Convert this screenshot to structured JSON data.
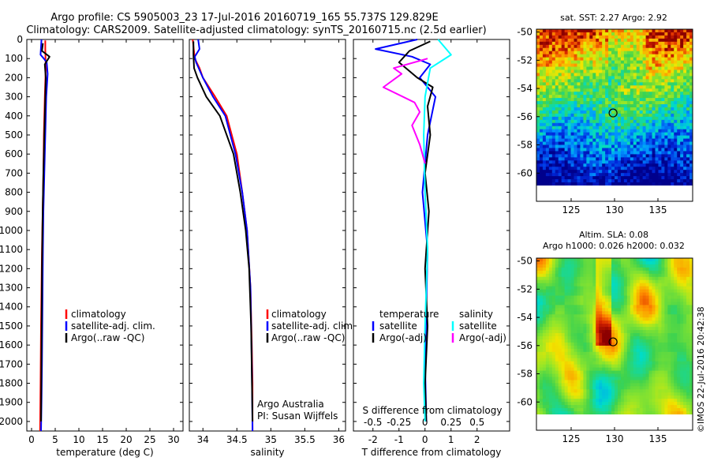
{
  "header": {
    "title_line1": "Argo profile: CS 5905003_23 17-Jul-2016 20160719_165 55.737S 129.829E",
    "title_line2": "Climatology: CARS2009. Satellite-adjusted climatology: synTS_20160715.nc (2.5d earlier)"
  },
  "colors": {
    "climatology": "#ff0000",
    "satellite": "#0000ff",
    "argo": "#000000",
    "satellite_salinity": "#00ffff",
    "argo_salinity": "#ff00ff"
  },
  "chart_data": [
    {
      "id": "temperature",
      "type": "line",
      "xlabel": "temperature (deg C)",
      "ylabel": "",
      "xlim": [
        -1,
        32
      ],
      "ylim": [
        2050,
        0
      ],
      "xticks": [
        0,
        5,
        10,
        15,
        20,
        25,
        30
      ],
      "yticks": [
        0,
        100,
        200,
        300,
        400,
        500,
        600,
        700,
        800,
        900,
        1000,
        1100,
        1200,
        1300,
        1400,
        1500,
        1600,
        1700,
        1800,
        1900,
        2000
      ],
      "legend": [
        "climatology",
        "satellite-adj. clim.",
        "Argo(..raw -QC)"
      ],
      "series": [
        {
          "name": "climatology",
          "color": "climatology",
          "x": [
            2.9,
            2.9,
            3.0,
            2.8,
            2.6,
            2.5,
            2.35,
            2.2,
            2.1,
            2.0,
            1.9,
            1.8
          ],
          "y": [
            5,
            50,
            150,
            300,
            500,
            700,
            900,
            1100,
            1300,
            1500,
            1800,
            2050
          ]
        },
        {
          "name": "satellite-adj. clim.",
          "color": "satellite",
          "x": [
            2.1,
            1.9,
            2.6,
            3.2,
            3.4,
            3.1,
            2.9,
            2.7,
            2.5,
            2.4,
            2.3,
            2.2,
            2.1,
            2.0
          ],
          "y": [
            0,
            80,
            100,
            120,
            180,
            300,
            500,
            700,
            900,
            1100,
            1400,
            1700,
            1900,
            2050
          ]
        },
        {
          "name": "Argo(..raw -QC)",
          "color": "argo",
          "x": [
            2.4,
            2.2,
            3.8,
            2.8,
            3.0,
            2.9,
            2.8,
            2.7,
            2.5,
            2.35,
            2.2,
            2.1,
            2.0
          ],
          "y": [
            20,
            60,
            90,
            130,
            200,
            300,
            400,
            500,
            700,
            900,
            1200,
            1600,
            2000
          ]
        }
      ]
    },
    {
      "id": "salinity",
      "type": "line",
      "xlabel": "salinity",
      "ylabel": "",
      "xlim": [
        33.8,
        36.1
      ],
      "ylim": [
        2050,
        0
      ],
      "xticks": [
        34,
        34.5,
        35,
        35.5,
        36
      ],
      "xtick_labels": [
        "34",
        "34.5",
        "35",
        "35.5",
        "36"
      ],
      "legend": [
        "climatology",
        "satellite-adj. clim.",
        "Argo(..raw -QC)"
      ],
      "annotation_lines": [
        "Argo Australia",
        "PI: Susan Wijffels"
      ],
      "series": [
        {
          "name": "climatology",
          "color": "climatology",
          "x": [
            33.85,
            33.88,
            33.95,
            34.0,
            34.18,
            34.35,
            34.5,
            34.58,
            34.65,
            34.7,
            34.72,
            34.73,
            34.73
          ],
          "y": [
            0,
            100,
            150,
            200,
            300,
            400,
            600,
            800,
            1000,
            1300,
            1600,
            1800,
            2050
          ]
        },
        {
          "name": "satellite-adj. clim.",
          "color": "satellite",
          "x": [
            33.93,
            33.95,
            33.88,
            33.9,
            34.0,
            34.15,
            34.33,
            34.48,
            34.58,
            34.65,
            34.7,
            34.72,
            34.73
          ],
          "y": [
            0,
            50,
            90,
            120,
            200,
            300,
            400,
            600,
            800,
            1000,
            1300,
            1700,
            2050
          ]
        },
        {
          "name": "Argo(..raw -QC)",
          "color": "argo",
          "x": [
            33.86,
            33.86,
            33.87,
            33.92,
            34.05,
            34.25,
            34.45,
            34.55,
            34.63,
            34.68,
            34.71,
            34.73
          ],
          "y": [
            10,
            80,
            150,
            200,
            300,
            400,
            600,
            800,
            1000,
            1200,
            1500,
            2000
          ]
        }
      ]
    },
    {
      "id": "difference",
      "type": "line",
      "xlabel": "T difference from climatology",
      "top_label": "S difference from climatology",
      "ylabel": "",
      "xlim": [
        -2.75,
        3.25
      ],
      "ylim": [
        2050,
        0
      ],
      "xticks": [
        -2,
        -1,
        0,
        1,
        2
      ],
      "top_ticks": [
        -0.5,
        -0.25,
        0,
        0.25,
        0.5
      ],
      "top_tick_labels": [
        "-0.5",
        "-0.25",
        "0",
        "0.25",
        "0.5"
      ],
      "legend_temperature": {
        "title": "temperature",
        "items": [
          "satellite",
          "Argo(-adj)"
        ]
      },
      "legend_salinity": {
        "title": "salinity",
        "items": [
          "satellite",
          "Argo(-adj)"
        ]
      },
      "series": [
        {
          "name": "temperature satellite",
          "color": "satellite",
          "x": [
            -0.3,
            -1.9,
            -0.5,
            0.2,
            -0.2,
            0.4,
            0.1,
            -0.1,
            0.1,
            0.05,
            0.0,
            0.05
          ],
          "y": [
            0,
            50,
            90,
            130,
            200,
            300,
            500,
            800,
            1100,
            1400,
            1700,
            2000
          ]
        },
        {
          "name": "temperature Argo(-adj)",
          "color": "argo",
          "x": [
            0.2,
            -0.6,
            -1.0,
            -0.3,
            0.3,
            0.1,
            0.2,
            0.0,
            0.15,
            0.0,
            0.1,
            0.0,
            0.05
          ],
          "y": [
            10,
            60,
            120,
            200,
            250,
            350,
            500,
            700,
            900,
            1200,
            1500,
            1800,
            2000
          ]
        },
        {
          "name": "salinity satellite",
          "color": "satellite_salinity",
          "x": [
            0.5,
            1.0,
            0.2,
            0.0,
            -0.05,
            0.0,
            0.1,
            0.0,
            -0.05,
            0.0
          ],
          "y": [
            0,
            80,
            150,
            300,
            500,
            800,
            1100,
            1500,
            1800,
            2000
          ]
        },
        {
          "name": "salinity Argo(-adj)",
          "color": "argo_salinity",
          "x": [
            0.1,
            -1.2,
            -0.9,
            -1.6,
            -0.4,
            -0.2,
            -0.5,
            -0.2,
            -0.1,
            0.0
          ],
          "y": [
            100,
            150,
            180,
            250,
            330,
            380,
            450,
            550,
            600,
            650
          ]
        }
      ]
    },
    {
      "id": "sst_map",
      "type": "heatmap",
      "title": "sat. SST: 2.27  Argo: 2.92",
      "xlim": [
        121,
        139
      ],
      "ylim": [
        -62,
        -49.8
      ],
      "xticks": [
        125,
        130,
        135
      ],
      "yticks": [
        -50,
        -52,
        -54,
        -56,
        -58,
        -60
      ],
      "float_marker": {
        "lon": 129.829,
        "lat": -55.737
      }
    },
    {
      "id": "sla_map",
      "type": "heatmap",
      "title_line1": "Altim. SLA: 0.08",
      "title_line2": "Argo h1000: 0.026  h2000: 0.032",
      "xlim": [
        121,
        139
      ],
      "ylim": [
        -62,
        -49.8
      ],
      "xticks": [
        125,
        130,
        135
      ],
      "yticks": [
        -50,
        -52,
        -54,
        -56,
        -58,
        -60
      ],
      "float_marker": {
        "lon": 129.829,
        "lat": -55.737
      }
    }
  ],
  "credit": "©IMOS 22-Jul-2016 20:42:38"
}
